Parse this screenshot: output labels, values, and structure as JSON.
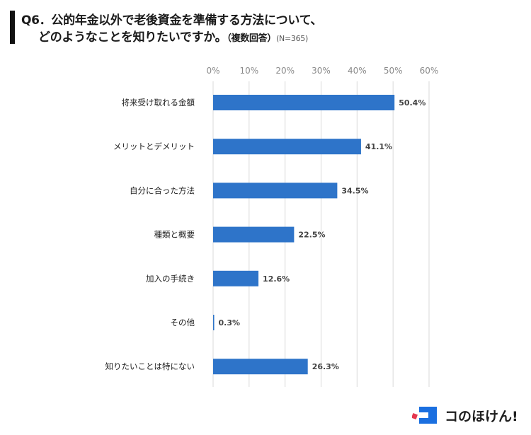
{
  "header": {
    "line1": "Q6．公的年金以外で老後資金を準備する方法について、",
    "line2": "どのようなことを知りたいですか。",
    "suffix": "（複数回答）",
    "sample": "(N=365)"
  },
  "chart_data": {
    "type": "bar",
    "orientation": "horizontal",
    "title": "Q6．公的年金以外で老後資金を準備する方法について、どのようなことを知りたいですか。",
    "categories": [
      "将来受け取れる金額",
      "メリットとデメリット",
      "自分に合った方法",
      "種類と概要",
      "加入の手続き",
      "その他",
      "知りたいことは特にない"
    ],
    "values": [
      50.4,
      41.1,
      34.5,
      22.5,
      12.6,
      0.3,
      26.3
    ],
    "data_labels": [
      "50.4%",
      "41.1%",
      "34.5%",
      "22.5%",
      "12.6%",
      "0.3%",
      "26.3%"
    ],
    "xlim": [
      0,
      60
    ],
    "ticks": [
      0,
      10,
      20,
      30,
      40,
      50,
      60
    ],
    "tick_labels": [
      "0%",
      "10%",
      "20%",
      "30%",
      "40%",
      "50%",
      "60%"
    ],
    "grid": true,
    "bar_color": "#2e74c9",
    "grid_color": "#d9d9d9"
  },
  "brand": {
    "name": "コのほけん!",
    "red": "#e5374f",
    "blue": "#1a6fe0"
  }
}
